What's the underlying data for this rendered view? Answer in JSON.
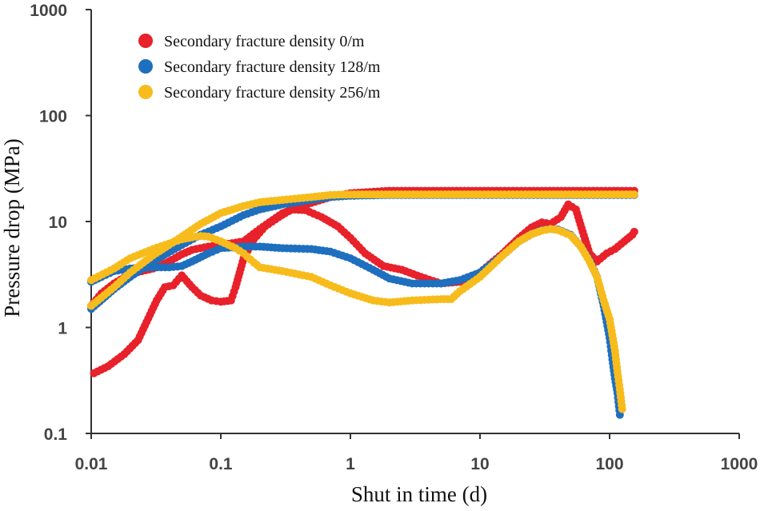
{
  "chart_data": {
    "type": "scatter",
    "xlabel": "Shut in time (d)",
    "ylabel": "Pressure drop (MPa)",
    "xscale": "log",
    "yscale": "log",
    "xlim": [
      0.01,
      1000
    ],
    "ylim": [
      0.1,
      1000
    ],
    "x_ticks": [
      "0.01",
      "0.1",
      "1",
      "10",
      "100",
      "1000"
    ],
    "y_ticks": [
      "0.1",
      "1",
      "10",
      "100",
      "1000"
    ],
    "grid": false,
    "legend_position": "top-left",
    "series": [
      {
        "name": "Secondary fracture density 0/m",
        "color": "#e8212b",
        "curves": [
          [
            [
              0.0105,
              0.37
            ],
            [
              0.0135,
              0.43
            ],
            [
              0.018,
              0.56
            ],
            [
              0.023,
              0.76
            ],
            [
              0.032,
              1.8
            ],
            [
              0.037,
              2.4
            ],
            [
              0.043,
              2.5
            ],
            [
              0.05,
              3.1
            ],
            [
              0.06,
              2.4
            ],
            [
              0.07,
              2.0
            ],
            [
              0.085,
              1.8
            ],
            [
              0.1,
              1.75
            ],
            [
              0.12,
              1.8
            ],
            [
              0.13,
              2.4
            ],
            [
              0.15,
              4.5
            ],
            [
              0.18,
              6.8
            ],
            [
              0.22,
              9
            ],
            [
              0.28,
              11
            ],
            [
              0.35,
              13
            ],
            [
              0.45,
              12.8
            ],
            [
              0.6,
              11
            ],
            [
              0.8,
              9
            ],
            [
              1.0,
              7
            ],
            [
              1.3,
              5
            ],
            [
              1.8,
              3.8
            ],
            [
              2.5,
              3.5
            ],
            [
              3.5,
              3.0
            ],
            [
              5,
              2.6
            ],
            [
              7,
              2.7
            ],
            [
              10,
              3.3
            ],
            [
              15,
              5
            ],
            [
              20,
              7
            ],
            [
              25,
              8.8
            ],
            [
              30,
              9.8
            ],
            [
              35,
              9.5
            ],
            [
              42,
              11
            ],
            [
              48,
              14.5
            ],
            [
              55,
              13
            ],
            [
              62,
              8
            ],
            [
              70,
              5
            ],
            [
              80,
              4.2
            ],
            [
              95,
              5
            ],
            [
              110,
              5.5
            ],
            [
              130,
              6.5
            ],
            [
              150,
              7.5
            ],
            [
              155,
              8
            ]
          ],
          [
            [
              0.01,
              1.6
            ],
            [
              0.012,
              2.1
            ],
            [
              0.015,
              2.6
            ],
            [
              0.02,
              3.2
            ],
            [
              0.03,
              3.6
            ],
            [
              0.04,
              4.2
            ],
            [
              0.05,
              4.9
            ],
            [
              0.06,
              5.4
            ],
            [
              0.08,
              5.8
            ],
            [
              0.1,
              6
            ],
            [
              0.15,
              6.5
            ],
            [
              0.2,
              8.5
            ],
            [
              0.3,
              12
            ],
            [
              0.5,
              15
            ],
            [
              0.7,
              17
            ],
            [
              1,
              18.5
            ],
            [
              2,
              19.5
            ],
            [
              5,
              19.5
            ],
            [
              10,
              19.5
            ],
            [
              30,
              19.5
            ],
            [
              60,
              19.5
            ],
            [
              100,
              19.5
            ],
            [
              155,
              19.5
            ]
          ]
        ]
      },
      {
        "name": "Secondary fracture density 128/m",
        "color": "#1f6fbf",
        "curves": [
          [
            [
              0.01,
              2.7
            ],
            [
              0.012,
              3.0
            ],
            [
              0.015,
              3.4
            ],
            [
              0.02,
              3.6
            ],
            [
              0.03,
              3.7
            ],
            [
              0.04,
              3.7
            ],
            [
              0.05,
              3.8
            ],
            [
              0.06,
              4.2
            ],
            [
              0.08,
              5
            ],
            [
              0.1,
              5.6
            ],
            [
              0.15,
              5.8
            ],
            [
              0.2,
              5.8
            ],
            [
              0.3,
              5.6
            ],
            [
              0.5,
              5.5
            ],
            [
              0.7,
              5.2
            ],
            [
              1.0,
              4.5
            ],
            [
              1.5,
              3.5
            ],
            [
              2,
              2.9
            ],
            [
              3,
              2.6
            ],
            [
              5,
              2.6
            ],
            [
              7,
              2.8
            ],
            [
              10,
              3.3
            ],
            [
              15,
              4.8
            ],
            [
              20,
              6.5
            ],
            [
              25,
              7.6
            ],
            [
              30,
              8.3
            ],
            [
              35,
              8.5
            ],
            [
              40,
              8.4
            ],
            [
              50,
              7.5
            ],
            [
              60,
              5.8
            ],
            [
              70,
              4.3
            ],
            [
              80,
              3.0
            ],
            [
              90,
              1.6
            ],
            [
              100,
              0.8
            ],
            [
              105,
              0.5
            ],
            [
              110,
              0.33
            ],
            [
              115,
              0.24
            ],
            [
              120,
              0.15
            ]
          ],
          [
            [
              0.01,
              1.5
            ],
            [
              0.015,
              2.3
            ],
            [
              0.02,
              3.0
            ],
            [
              0.03,
              4.2
            ],
            [
              0.05,
              6.0
            ],
            [
              0.07,
              7.5
            ],
            [
              0.1,
              9
            ],
            [
              0.15,
              11.5
            ],
            [
              0.2,
              13
            ],
            [
              0.3,
              14.5
            ],
            [
              0.5,
              16
            ],
            [
              0.7,
              17
            ],
            [
              1,
              17.5
            ],
            [
              2,
              17.8
            ],
            [
              5,
              17.8
            ],
            [
              10,
              17.8
            ],
            [
              30,
              17.8
            ],
            [
              60,
              17.8
            ],
            [
              100,
              17.8
            ],
            [
              155,
              17.8
            ]
          ]
        ]
      },
      {
        "name": "Secondary fracture density 256/m",
        "color": "#f7bc1c",
        "curves": [
          [
            [
              0.01,
              2.8
            ],
            [
              0.015,
              3.6
            ],
            [
              0.02,
              4.5
            ],
            [
              0.03,
              5.5
            ],
            [
              0.04,
              6.2
            ],
            [
              0.05,
              6.8
            ],
            [
              0.06,
              7.1
            ],
            [
              0.07,
              7.3
            ],
            [
              0.08,
              7.2
            ],
            [
              0.1,
              6.5
            ],
            [
              0.13,
              5.6
            ],
            [
              0.15,
              5.0
            ],
            [
              0.18,
              4.1
            ],
            [
              0.2,
              3.7
            ],
            [
              0.3,
              3.4
            ],
            [
              0.5,
              3.0
            ],
            [
              0.7,
              2.5
            ],
            [
              1.0,
              2.1
            ],
            [
              1.5,
              1.8
            ],
            [
              2,
              1.72
            ],
            [
              3,
              1.8
            ],
            [
              5,
              1.85
            ],
            [
              6,
              1.85
            ],
            [
              7,
              2.2
            ],
            [
              10,
              3.0
            ],
            [
              15,
              4.8
            ],
            [
              20,
              6.5
            ],
            [
              25,
              7.6
            ],
            [
              30,
              8.2
            ],
            [
              35,
              8.5
            ],
            [
              40,
              8.3
            ],
            [
              50,
              7.4
            ],
            [
              60,
              5.8
            ],
            [
              70,
              4.2
            ],
            [
              80,
              3.0
            ],
            [
              90,
              1.8
            ],
            [
              100,
              1.2
            ],
            [
              105,
              0.85
            ],
            [
              110,
              0.6
            ],
            [
              115,
              0.38
            ],
            [
              120,
              0.26
            ],
            [
              125,
              0.17
            ]
          ],
          [
            [
              0.01,
              1.6
            ],
            [
              0.015,
              2.4
            ],
            [
              0.02,
              3.3
            ],
            [
              0.03,
              4.8
            ],
            [
              0.05,
              7.2
            ],
            [
              0.07,
              9.5
            ],
            [
              0.1,
              12
            ],
            [
              0.15,
              14
            ],
            [
              0.2,
              15.2
            ],
            [
              0.3,
              16
            ],
            [
              0.5,
              17
            ],
            [
              0.7,
              17.8
            ],
            [
              1,
              18
            ],
            [
              2,
              18
            ],
            [
              5,
              18
            ],
            [
              10,
              18
            ],
            [
              30,
              18
            ],
            [
              60,
              18
            ],
            [
              100,
              18
            ],
            [
              155,
              18
            ]
          ]
        ]
      }
    ]
  }
}
